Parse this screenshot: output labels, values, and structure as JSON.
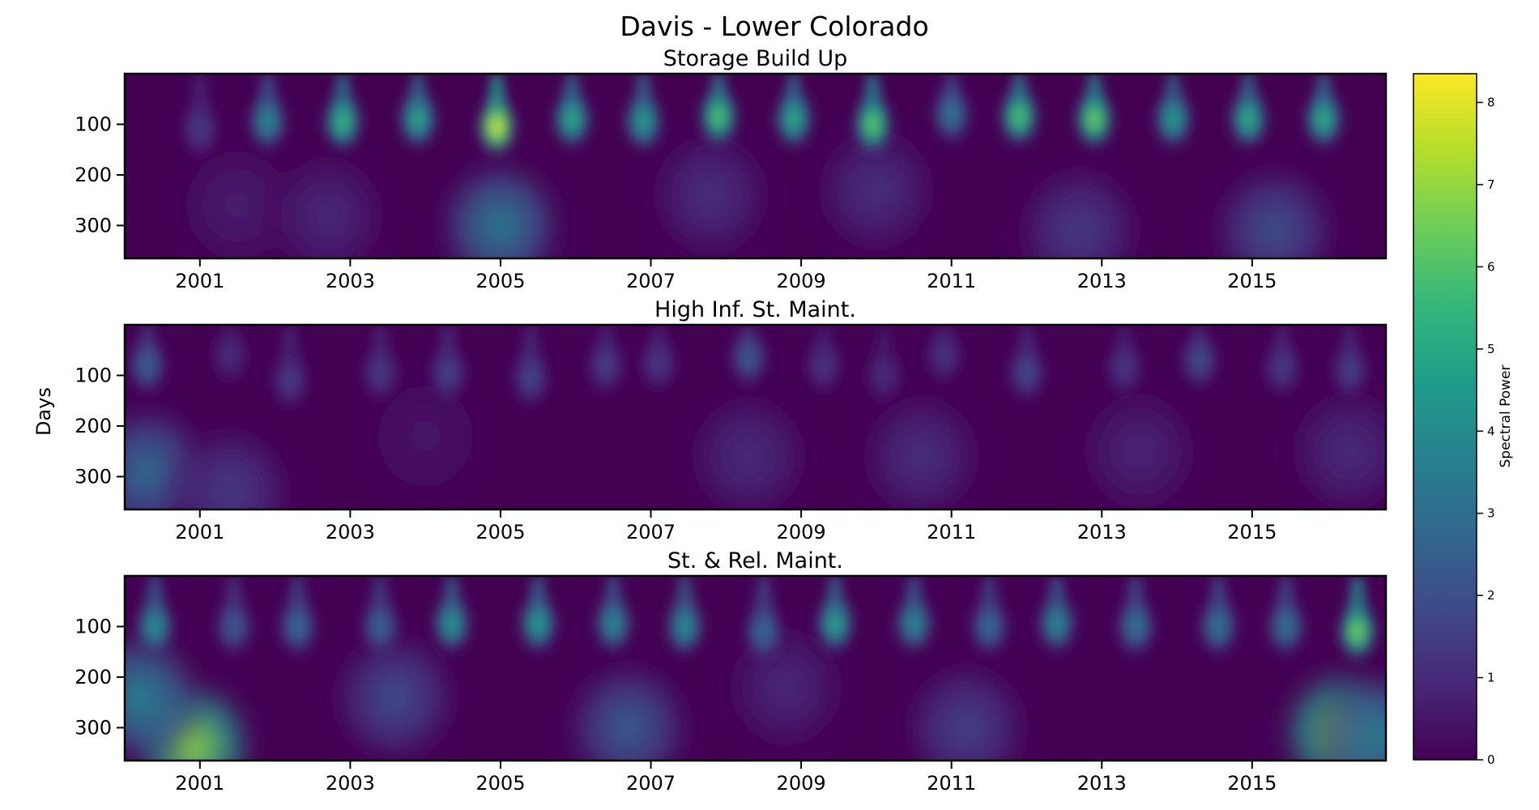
{
  "figure": {
    "title": "Davis - Lower Colorado",
    "ylabel": "Days"
  },
  "colorbar": {
    "label": "Spectral Power",
    "min": 0,
    "max": 8.35,
    "ticks": [
      "0",
      "1",
      "2",
      "3",
      "4",
      "5",
      "6",
      "7",
      "8"
    ],
    "colormap": "viridis",
    "colors": [
      "#440154",
      "#482878",
      "#3e4a89",
      "#31688e",
      "#26828e",
      "#1f9e89",
      "#35b779",
      "#6ece58",
      "#b5de2b",
      "#fde725"
    ]
  },
  "chart_data": [
    {
      "type": "heatmap",
      "title": "Storage Build Up",
      "xlabel": "",
      "ylabel": "Days",
      "xlim": [
        2000.0,
        2016.78
      ],
      "ylim": [
        365,
        0
      ],
      "xticks": [
        "2001",
        "2003",
        "2005",
        "2007",
        "2009",
        "2011",
        "2013",
        "2015"
      ],
      "yticks": [
        "100",
        "200",
        "300"
      ],
      "blobs": [
        {
          "t": 2001.0,
          "day": 110,
          "power": 1.5
        },
        {
          "t": 2001.9,
          "day": 95,
          "power": 4.0
        },
        {
          "t": 2002.9,
          "day": 95,
          "power": 5.8
        },
        {
          "t": 2003.9,
          "day": 90,
          "power": 5.2
        },
        {
          "t": 2004.95,
          "day": 105,
          "power": 8.3
        },
        {
          "t": 2005.95,
          "day": 90,
          "power": 5.3
        },
        {
          "t": 2006.9,
          "day": 95,
          "power": 4.8
        },
        {
          "t": 2007.9,
          "day": 85,
          "power": 6.3
        },
        {
          "t": 2008.9,
          "day": 90,
          "power": 5.3
        },
        {
          "t": 2009.95,
          "day": 100,
          "power": 6.6
        },
        {
          "t": 2011.0,
          "day": 80,
          "power": 3.4
        },
        {
          "t": 2011.9,
          "day": 85,
          "power": 6.3
        },
        {
          "t": 2012.9,
          "day": 90,
          "power": 6.8
        },
        {
          "t": 2013.95,
          "day": 90,
          "power": 4.8
        },
        {
          "t": 2014.95,
          "day": 90,
          "power": 5.4
        },
        {
          "t": 2015.95,
          "day": 90,
          "power": 5.4
        }
      ],
      "broad": [
        {
          "t": 2001.5,
          "day": 260,
          "power": 0.7
        },
        {
          "t": 2002.7,
          "day": 280,
          "power": 1.0
        },
        {
          "t": 2005.0,
          "day": 300,
          "power": 3.5
        },
        {
          "t": 2007.8,
          "day": 240,
          "power": 1.2
        },
        {
          "t": 2010.0,
          "day": 230,
          "power": 1.2
        },
        {
          "t": 2012.7,
          "day": 310,
          "power": 1.5
        },
        {
          "t": 2015.3,
          "day": 310,
          "power": 2.1
        }
      ]
    },
    {
      "type": "heatmap",
      "title": "High Inf. St. Maint.",
      "xlabel": "",
      "ylabel": "Days",
      "xlim": [
        2000.0,
        2016.78
      ],
      "ylim": [
        365,
        0
      ],
      "xticks": [
        "2001",
        "2003",
        "2005",
        "2007",
        "2009",
        "2011",
        "2013",
        "2015"
      ],
      "yticks": [
        "100",
        "200",
        "300"
      ],
      "blobs": [
        {
          "t": 2000.3,
          "day": 80,
          "power": 2.6
        },
        {
          "t": 2001.4,
          "day": 60,
          "power": 1.1
        },
        {
          "t": 2002.2,
          "day": 110,
          "power": 1.5
        },
        {
          "t": 2003.4,
          "day": 95,
          "power": 1.5
        },
        {
          "t": 2004.3,
          "day": 95,
          "power": 1.7
        },
        {
          "t": 2005.4,
          "day": 105,
          "power": 1.8
        },
        {
          "t": 2006.4,
          "day": 80,
          "power": 1.6
        },
        {
          "t": 2007.1,
          "day": 75,
          "power": 1.4
        },
        {
          "t": 2008.3,
          "day": 65,
          "power": 2.4
        },
        {
          "t": 2009.3,
          "day": 80,
          "power": 1.3
        },
        {
          "t": 2010.1,
          "day": 100,
          "power": 1.1
        },
        {
          "t": 2010.9,
          "day": 60,
          "power": 1.3
        },
        {
          "t": 2012.0,
          "day": 95,
          "power": 1.9
        },
        {
          "t": 2013.3,
          "day": 85,
          "power": 1.4
        },
        {
          "t": 2014.3,
          "day": 70,
          "power": 2.0
        },
        {
          "t": 2015.4,
          "day": 85,
          "power": 1.5
        },
        {
          "t": 2016.3,
          "day": 90,
          "power": 1.6
        }
      ],
      "broad": [
        {
          "t": 2000.3,
          "day": 290,
          "power": 3.0
        },
        {
          "t": 2001.4,
          "day": 330,
          "power": 1.5
        },
        {
          "t": 2004.0,
          "day": 220,
          "power": 0.5
        },
        {
          "t": 2008.3,
          "day": 260,
          "power": 1.1
        },
        {
          "t": 2010.6,
          "day": 260,
          "power": 1.2
        },
        {
          "t": 2013.5,
          "day": 250,
          "power": 0.9
        },
        {
          "t": 2016.3,
          "day": 250,
          "power": 1.1
        }
      ]
    },
    {
      "type": "heatmap",
      "title": "St. & Rel. Maint.",
      "xlabel": "",
      "ylabel": "Days",
      "xlim": [
        2000.0,
        2016.78
      ],
      "ylim": [
        365,
        0
      ],
      "xticks": [
        "2001",
        "2003",
        "2005",
        "2007",
        "2009",
        "2011",
        "2013",
        "2015"
      ],
      "yticks": [
        "100",
        "200",
        "300"
      ],
      "blobs": [
        {
          "t": 2000.4,
          "day": 100,
          "power": 4.3
        },
        {
          "t": 2001.45,
          "day": 100,
          "power": 2.4
        },
        {
          "t": 2002.3,
          "day": 100,
          "power": 3.0
        },
        {
          "t": 2003.4,
          "day": 100,
          "power": 2.8
        },
        {
          "t": 2004.35,
          "day": 95,
          "power": 4.5
        },
        {
          "t": 2005.5,
          "day": 95,
          "power": 4.7
        },
        {
          "t": 2006.5,
          "day": 95,
          "power": 4.0
        },
        {
          "t": 2007.45,
          "day": 100,
          "power": 4.2
        },
        {
          "t": 2008.5,
          "day": 110,
          "power": 3.0
        },
        {
          "t": 2009.45,
          "day": 95,
          "power": 5.0
        },
        {
          "t": 2010.5,
          "day": 95,
          "power": 4.0
        },
        {
          "t": 2011.5,
          "day": 100,
          "power": 3.0
        },
        {
          "t": 2012.4,
          "day": 95,
          "power": 4.0
        },
        {
          "t": 2013.45,
          "day": 100,
          "power": 3.4
        },
        {
          "t": 2014.55,
          "day": 100,
          "power": 3.4
        },
        {
          "t": 2015.45,
          "day": 100,
          "power": 3.3
        },
        {
          "t": 2016.4,
          "day": 110,
          "power": 6.9
        }
      ],
      "broad": [
        {
          "t": 2000.9,
          "day": 335,
          "power": 7.0
        },
        {
          "t": 2000.2,
          "day": 240,
          "power": 3.8
        },
        {
          "t": 2003.6,
          "day": 240,
          "power": 2.0
        },
        {
          "t": 2006.7,
          "day": 300,
          "power": 2.5
        },
        {
          "t": 2008.8,
          "day": 220,
          "power": 1.0
        },
        {
          "t": 2011.2,
          "day": 300,
          "power": 1.7
        },
        {
          "t": 2016.2,
          "day": 310,
          "power": 6.9
        },
        {
          "t": 2016.7,
          "day": 320,
          "power": 3.5
        }
      ]
    }
  ]
}
